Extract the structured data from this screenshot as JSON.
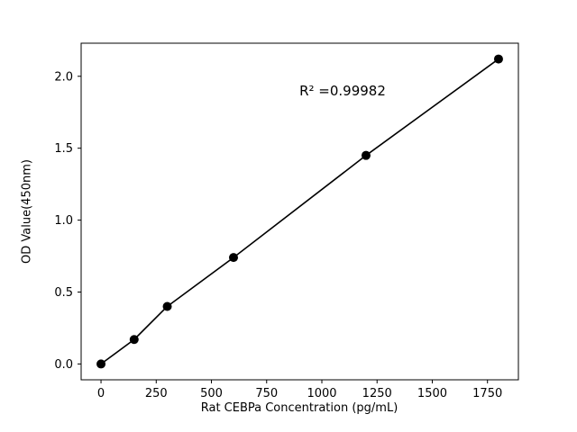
{
  "chart_data": {
    "type": "scatter",
    "title": "",
    "xlabel": "Rat CEBPa Concentration (pg/mL)",
    "ylabel": "OD Value(450nm)",
    "annotation": "R² =0.99982",
    "x": [
      0,
      150,
      300,
      600,
      1200,
      1800
    ],
    "y": [
      0.0,
      0.17,
      0.4,
      0.74,
      1.45,
      2.12
    ],
    "xticks": [
      0,
      250,
      500,
      750,
      1000,
      1250,
      1500,
      1750
    ],
    "yticks": [
      0.0,
      0.5,
      1.0,
      1.5,
      2.0
    ],
    "xlim": [
      -90,
      1890
    ],
    "ylim": [
      -0.11,
      2.23
    ],
    "line_color": "#000000",
    "marker_color": "#000000",
    "axis_color": "#000000",
    "grid": false,
    "legend": "none"
  }
}
